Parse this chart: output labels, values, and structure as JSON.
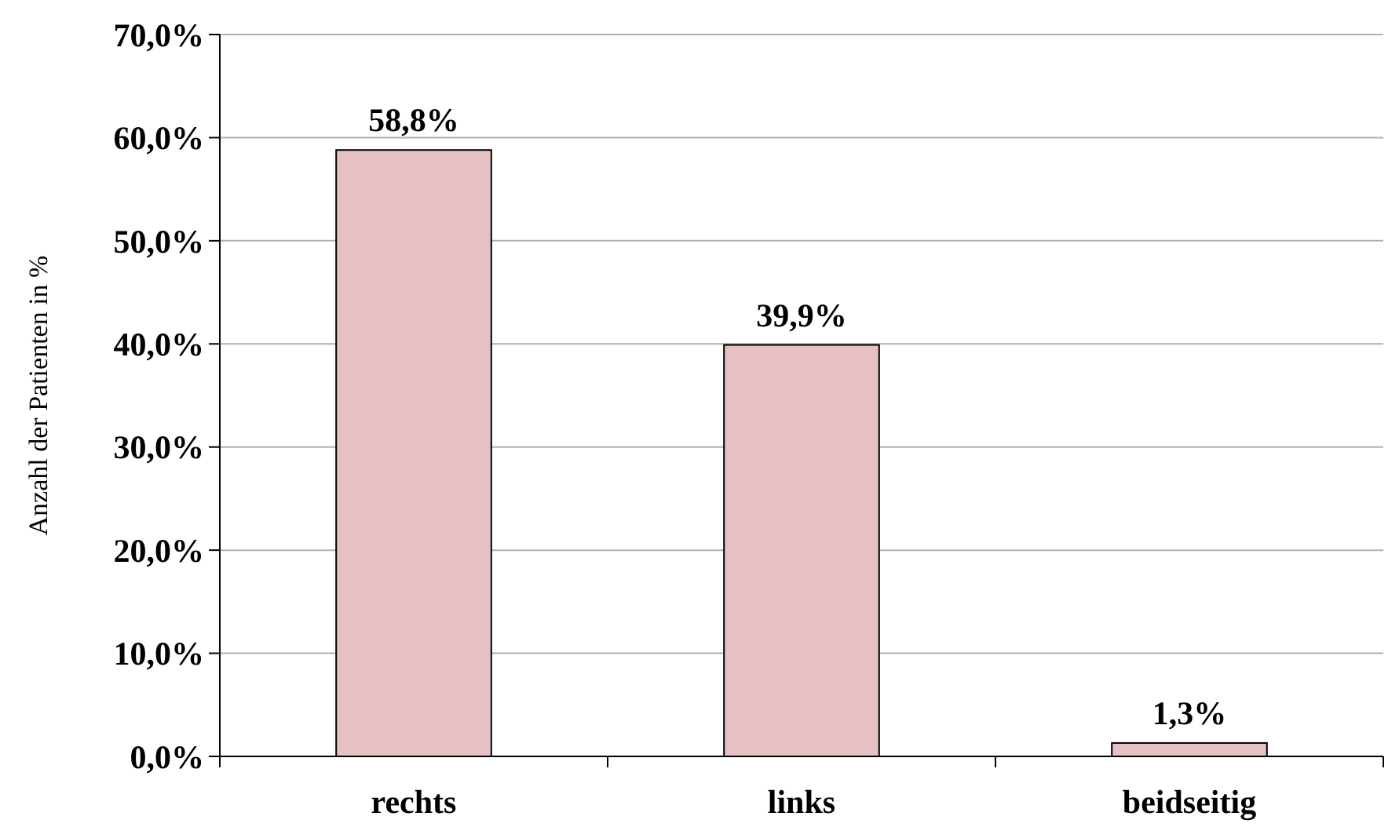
{
  "chart_data": {
    "type": "bar",
    "ylabel": "Anzahl der Patienten in %",
    "categories": [
      "rechts",
      "links",
      "beidseitig"
    ],
    "values": [
      58.8,
      39.9,
      1.3
    ],
    "value_labels": [
      "58,8%",
      "39,9%",
      "1,3%"
    ],
    "color": "#e6c1c3",
    "ylim": [
      0,
      70
    ],
    "yticks": [
      {
        "value": 0,
        "label": "0,0%"
      },
      {
        "value": 10,
        "label": "10,0%"
      },
      {
        "value": 20,
        "label": "20,0%"
      },
      {
        "value": 30,
        "label": "30,0%"
      },
      {
        "value": 40,
        "label": "40,0%"
      },
      {
        "value": 50,
        "label": "50,0%"
      },
      {
        "value": 60,
        "label": "60,0%"
      },
      {
        "value": 70,
        "label": "70,0%"
      }
    ],
    "grid": "y"
  }
}
